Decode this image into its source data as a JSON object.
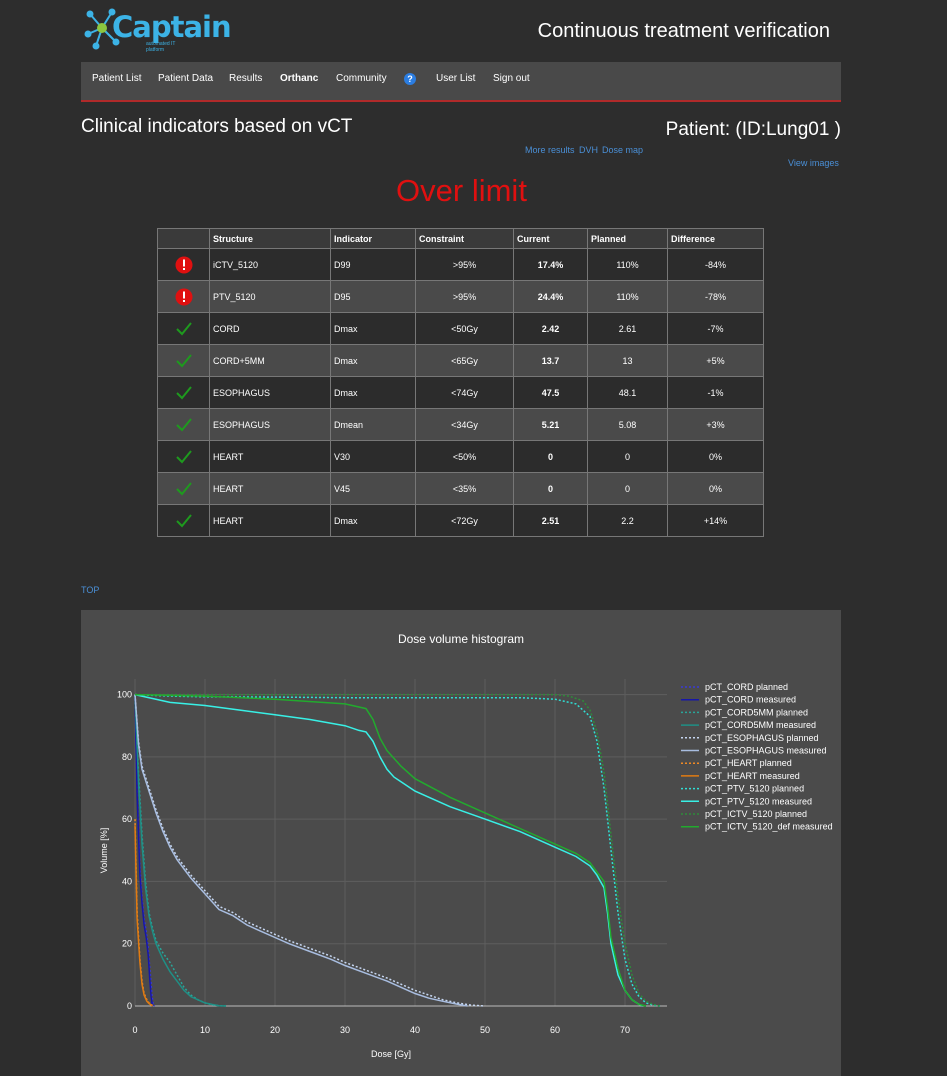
{
  "brand": {
    "logo_text": "Captain",
    "tagline": "automated IT platform",
    "colors": {
      "logo_blue": "#3cb3e6",
      "logo_green": "#8cc63f"
    }
  },
  "header": {
    "app_title": "Continuous treatment verification"
  },
  "nav": {
    "items": [
      "Patient List",
      "Patient Data",
      "Results",
      "Orthanc",
      "Community",
      "User List",
      "Sign out"
    ],
    "help_icon": "?"
  },
  "page": {
    "title": "Clinical indicators based on vCT",
    "patient": "Patient: (ID:Lung01 )",
    "links": {
      "more_results": "More results",
      "dvh": "DVH",
      "dose_map": "Dose map",
      "view_images": "View images"
    },
    "status": "Over limit",
    "status_color": "#e01010",
    "top_link": "TOP"
  },
  "table": {
    "headers": [
      "",
      "Structure",
      "Indicator",
      "Constraint",
      "Current",
      "Planned",
      "Difference"
    ],
    "rows": [
      {
        "status": "fail",
        "structure": "iCTV_5120",
        "indicator": "D99",
        "constraint": ">95%",
        "current": "17.4%",
        "planned": "110%",
        "difference": "-84%"
      },
      {
        "status": "fail",
        "structure": "PTV_5120",
        "indicator": "D95",
        "constraint": ">95%",
        "current": "24.4%",
        "planned": "110%",
        "difference": "-78%"
      },
      {
        "status": "ok",
        "structure": "CORD",
        "indicator": "Dmax",
        "constraint": "<50Gy",
        "current": "2.42",
        "planned": "2.61",
        "difference": "-7%"
      },
      {
        "status": "ok",
        "structure": "CORD+5MM",
        "indicator": "Dmax",
        "constraint": "<65Gy",
        "current": "13.7",
        "planned": "13",
        "difference": "+5%"
      },
      {
        "status": "ok",
        "structure": "ESOPHAGUS",
        "indicator": "Dmax",
        "constraint": "<74Gy",
        "current": "47.5",
        "planned": "48.1",
        "difference": "-1%"
      },
      {
        "status": "ok",
        "structure": "ESOPHAGUS",
        "indicator": "Dmean",
        "constraint": "<34Gy",
        "current": "5.21",
        "planned": "5.08",
        "difference": "+3%"
      },
      {
        "status": "ok",
        "structure": "HEART",
        "indicator": "V30",
        "constraint": "<50%",
        "current": "0",
        "planned": "0",
        "difference": "0%"
      },
      {
        "status": "ok",
        "structure": "HEART",
        "indicator": "V45",
        "constraint": "<35%",
        "current": "0",
        "planned": "0",
        "difference": "0%"
      },
      {
        "status": "ok",
        "structure": "HEART",
        "indicator": "Dmax",
        "constraint": "<72Gy",
        "current": "2.51",
        "planned": "2.2",
        "difference": "+14%"
      }
    ]
  },
  "chart_data": {
    "type": "line",
    "title": "Dose volume histogram",
    "xlabel": "Dose [Gy]",
    "ylabel": "Volume [%]",
    "xlim": [
      0,
      76
    ],
    "ylim": [
      0,
      105
    ],
    "xticks": [
      0,
      10,
      20,
      30,
      40,
      50,
      60,
      70
    ],
    "yticks": [
      0,
      20,
      40,
      60,
      80,
      100
    ],
    "grid": true,
    "legend_position": "top-right",
    "series": [
      {
        "name": "pCT_CORD planned",
        "color": "#3a3ad6",
        "dash": true,
        "points": [
          [
            0,
            100
          ],
          [
            0.3,
            70
          ],
          [
            0.7,
            45
          ],
          [
            1.0,
            35
          ],
          [
            1.3,
            28
          ],
          [
            1.6,
            24
          ],
          [
            1.9,
            18
          ],
          [
            2.2,
            10
          ],
          [
            2.4,
            4
          ],
          [
            2.6,
            0.5
          ],
          [
            2.8,
            0
          ]
        ]
      },
      {
        "name": "pCT_CORD measured",
        "color": "#1616a8",
        "dash": false,
        "points": [
          [
            0,
            100
          ],
          [
            0.3,
            68
          ],
          [
            0.7,
            42
          ],
          [
            1.0,
            33
          ],
          [
            1.3,
            26
          ],
          [
            1.6,
            22
          ],
          [
            1.9,
            16
          ],
          [
            2.1,
            9
          ],
          [
            2.3,
            3
          ],
          [
            2.45,
            0.5
          ],
          [
            2.6,
            0
          ]
        ]
      },
      {
        "name": "pCT_CORD5MM planned",
        "color": "#2aa59a",
        "dash": true,
        "points": [
          [
            0,
            100
          ],
          [
            0.5,
            75
          ],
          [
            1,
            55
          ],
          [
            1.5,
            40
          ],
          [
            2,
            30
          ],
          [
            2.5,
            25
          ],
          [
            3,
            21
          ],
          [
            4,
            17
          ],
          [
            5,
            14
          ],
          [
            6,
            10
          ],
          [
            7,
            6
          ],
          [
            8,
            3.5
          ],
          [
            9,
            2
          ],
          [
            10,
            1
          ],
          [
            11,
            0.4
          ],
          [
            12,
            0.1
          ],
          [
            13,
            0
          ]
        ]
      },
      {
        "name": "pCT_CORD5MM measured",
        "color": "#1f8f85",
        "dash": false,
        "points": [
          [
            0,
            100
          ],
          [
            0.5,
            72
          ],
          [
            1,
            52
          ],
          [
            1.5,
            38
          ],
          [
            2,
            29
          ],
          [
            2.5,
            24
          ],
          [
            3,
            20
          ],
          [
            4,
            15
          ],
          [
            5,
            11
          ],
          [
            6,
            8
          ],
          [
            7,
            5
          ],
          [
            8,
            3
          ],
          [
            9,
            2
          ],
          [
            10,
            1
          ],
          [
            11,
            0.5
          ],
          [
            12,
            0.1
          ],
          [
            13,
            0
          ]
        ]
      },
      {
        "name": "pCT_ESOPHAGUS planned",
        "color": "#c6d6f0",
        "dash": true,
        "points": [
          [
            0,
            100
          ],
          [
            0.5,
            85
          ],
          [
            1,
            77
          ],
          [
            2,
            70
          ],
          [
            3,
            63
          ],
          [
            4,
            57
          ],
          [
            5,
            52
          ],
          [
            6,
            48
          ],
          [
            7,
            45
          ],
          [
            8,
            42
          ],
          [
            10,
            37
          ],
          [
            12,
            32
          ],
          [
            14,
            30
          ],
          [
            16,
            27
          ],
          [
            18,
            25
          ],
          [
            20,
            23
          ],
          [
            22,
            21
          ],
          [
            25,
            18.5
          ],
          [
            28,
            16
          ],
          [
            30,
            14
          ],
          [
            33,
            11.5
          ],
          [
            36,
            9
          ],
          [
            38,
            7
          ],
          [
            40,
            5
          ],
          [
            42,
            3.5
          ],
          [
            44,
            2
          ],
          [
            46,
            1
          ],
          [
            48,
            0.3
          ],
          [
            50,
            0
          ]
        ]
      },
      {
        "name": "pCT_ESOPHAGUS measured",
        "color": "#a8bde0",
        "dash": false,
        "points": [
          [
            0,
            100
          ],
          [
            0.5,
            84
          ],
          [
            1,
            76
          ],
          [
            2,
            69
          ],
          [
            3,
            62
          ],
          [
            4,
            56
          ],
          [
            5,
            51
          ],
          [
            6,
            47
          ],
          [
            7,
            44
          ],
          [
            8,
            41
          ],
          [
            10,
            36
          ],
          [
            12,
            31
          ],
          [
            14,
            29
          ],
          [
            16,
            26
          ],
          [
            18,
            24
          ],
          [
            20,
            22
          ],
          [
            22,
            20
          ],
          [
            25,
            17.5
          ],
          [
            28,
            15
          ],
          [
            30,
            13
          ],
          [
            33,
            10.5
          ],
          [
            36,
            8
          ],
          [
            38,
            6
          ],
          [
            40,
            4
          ],
          [
            42,
            2.5
          ],
          [
            44,
            1.5
          ],
          [
            46,
            0.6
          ],
          [
            47.5,
            0
          ]
        ]
      },
      {
        "name": "pCT_HEART planned",
        "color": "#f08a24",
        "dash": true,
        "points": [
          [
            0,
            60
          ],
          [
            0.3,
            30
          ],
          [
            0.7,
            15
          ],
          [
            1.0,
            8
          ],
          [
            1.3,
            4
          ],
          [
            1.7,
            2
          ],
          [
            2.0,
            1
          ],
          [
            2.4,
            0.3
          ],
          [
            2.8,
            0
          ]
        ]
      },
      {
        "name": "pCT_HEART measured",
        "color": "#e07b12",
        "dash": false,
        "points": [
          [
            0,
            58
          ],
          [
            0.3,
            28
          ],
          [
            0.7,
            14
          ],
          [
            1.0,
            7
          ],
          [
            1.3,
            3.5
          ],
          [
            1.7,
            1.5
          ],
          [
            2.0,
            0.8
          ],
          [
            2.5,
            0
          ]
        ]
      },
      {
        "name": "pCT_PTV_5120 planned",
        "color": "#2fe0d6",
        "dash": true,
        "points": [
          [
            0,
            100
          ],
          [
            5,
            99.5
          ],
          [
            10,
            99.3
          ],
          [
            20,
            99.2
          ],
          [
            30,
            99
          ],
          [
            40,
            99
          ],
          [
            50,
            99
          ],
          [
            55,
            99
          ],
          [
            60,
            98.5
          ],
          [
            63,
            97
          ],
          [
            65,
            93
          ],
          [
            66,
            85
          ],
          [
            67,
            70
          ],
          [
            68,
            50
          ],
          [
            69,
            30
          ],
          [
            70,
            15
          ],
          [
            71,
            7
          ],
          [
            72,
            3
          ],
          [
            73,
            1
          ],
          [
            74,
            0.3
          ],
          [
            75,
            0
          ]
        ]
      },
      {
        "name": "pCT_PTV_5120 measured",
        "color": "#38f0e6",
        "dash": false,
        "points": [
          [
            0,
            100
          ],
          [
            5,
            97.5
          ],
          [
            10,
            96.5
          ],
          [
            15,
            95
          ],
          [
            20,
            93.5
          ],
          [
            25,
            92
          ],
          [
            30,
            90
          ],
          [
            32,
            88.5
          ],
          [
            33,
            88
          ],
          [
            34,
            85
          ],
          [
            35,
            80
          ],
          [
            36,
            76
          ],
          [
            37,
            73.5
          ],
          [
            38,
            72
          ],
          [
            40,
            69
          ],
          [
            45,
            64
          ],
          [
            50,
            60
          ],
          [
            55,
            56
          ],
          [
            60,
            51
          ],
          [
            63,
            48
          ],
          [
            65,
            45
          ],
          [
            66,
            42
          ],
          [
            67,
            38
          ],
          [
            67.5,
            30
          ],
          [
            68,
            20
          ],
          [
            69,
            10
          ],
          [
            70,
            5
          ],
          [
            71,
            2
          ],
          [
            72,
            0.5
          ],
          [
            72.5,
            0
          ]
        ]
      },
      {
        "name": "pCT_ICTV_5120 planned",
        "color": "#2e8b3a",
        "dash": true,
        "points": [
          [
            0,
            100
          ],
          [
            10,
            100
          ],
          [
            20,
            100
          ],
          [
            30,
            100
          ],
          [
            40,
            100
          ],
          [
            50,
            100
          ],
          [
            60,
            100
          ],
          [
            62,
            99.5
          ],
          [
            64,
            98
          ],
          [
            65,
            95
          ],
          [
            66,
            88
          ],
          [
            67,
            75
          ],
          [
            68,
            55
          ],
          [
            69,
            35
          ],
          [
            70,
            20
          ],
          [
            71,
            10
          ],
          [
            72,
            4
          ],
          [
            73,
            1.5
          ],
          [
            74,
            0.5
          ],
          [
            75,
            0
          ]
        ]
      },
      {
        "name": "pCT_ICTV_5120_def measured",
        "color": "#22aa2e",
        "dash": false,
        "points": [
          [
            0,
            100
          ],
          [
            10,
            99.5
          ],
          [
            20,
            98.5
          ],
          [
            30,
            97
          ],
          [
            33,
            95.5
          ],
          [
            34,
            92
          ],
          [
            35,
            86
          ],
          [
            36,
            82
          ],
          [
            38,
            77
          ],
          [
            40,
            73
          ],
          [
            45,
            67
          ],
          [
            50,
            62
          ],
          [
            55,
            57
          ],
          [
            60,
            52
          ],
          [
            63,
            49
          ],
          [
            65,
            46
          ],
          [
            66,
            43
          ],
          [
            67,
            40
          ],
          [
            67.5,
            32
          ],
          [
            68,
            22
          ],
          [
            69,
            12
          ],
          [
            70,
            5
          ],
          [
            71,
            2
          ],
          [
            72,
            0.5
          ],
          [
            73,
            0
          ]
        ]
      }
    ]
  }
}
